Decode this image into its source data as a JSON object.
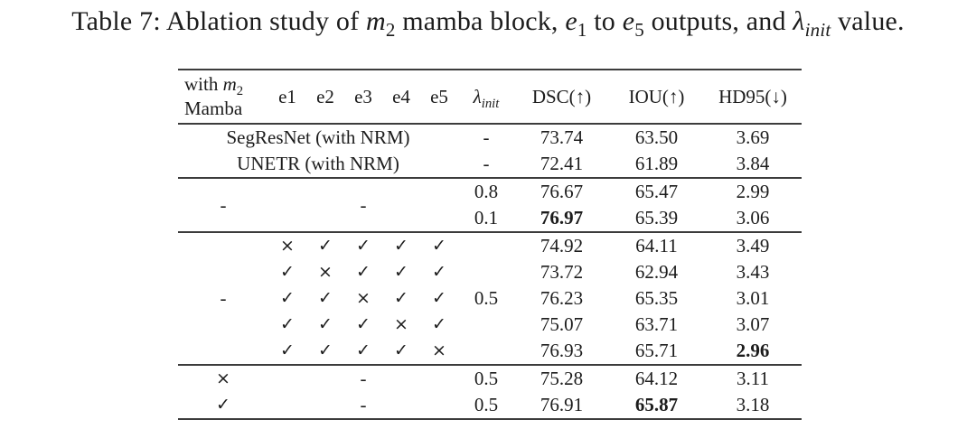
{
  "caption": {
    "segments": [
      {
        "t": "Table 7:  Ablation study of ",
        "s": "n"
      },
      {
        "t": "m",
        "s": "i"
      },
      {
        "t": "2",
        "s": "sub"
      },
      {
        "t": " mamba block, ",
        "s": "n"
      },
      {
        "t": "e",
        "s": "i"
      },
      {
        "t": "1",
        "s": "sub"
      },
      {
        "t": " to ",
        "s": "n"
      },
      {
        "t": "e",
        "s": "i"
      },
      {
        "t": "5",
        "s": "sub"
      },
      {
        "t": " outputs, and ",
        "s": "n"
      },
      {
        "t": "λ",
        "s": "i"
      },
      {
        "t": "init",
        "s": "subi"
      },
      {
        "t": " value.",
        "s": "n"
      }
    ]
  },
  "table": {
    "header": {
      "col1_line1": [
        {
          "t": "with ",
          "s": "n"
        },
        {
          "t": "m",
          "s": "i"
        },
        {
          "t": "2",
          "s": "sub"
        }
      ],
      "col1_line2": [
        {
          "t": "Mamba",
          "s": "n"
        }
      ],
      "e_cols": [
        "e1",
        "e2",
        "e3",
        "e4",
        "e5"
      ],
      "lambda_segments": [
        {
          "t": "λ",
          "s": "i"
        },
        {
          "t": "init",
          "s": "subi"
        }
      ],
      "metrics": [
        "DSC(↑)",
        "IOU(↑)",
        "HD95(↓)"
      ]
    },
    "symbols": {
      "check": "✓",
      "cross": "×",
      "dash": "-"
    },
    "sections": [
      {
        "rows": [
          {
            "cells": [
              {
                "t": "SegResNet (with NRM)",
                "cs": 6,
                "n": "model-name-cell"
              },
              {
                "t": "-",
                "n": "lambda-dash-cell"
              },
              {
                "t": "73.74",
                "n": "dsc-value-cell"
              },
              {
                "t": "63.50",
                "n": "iou-value-cell"
              },
              {
                "t": "3.69",
                "n": "hd95-value-cell"
              }
            ]
          },
          {
            "cells": [
              {
                "t": "UNETR (with NRM)",
                "cs": 6,
                "n": "model-name-cell"
              },
              {
                "t": "-",
                "n": "lambda-dash-cell"
              },
              {
                "t": "72.41",
                "n": "dsc-value-cell"
              },
              {
                "t": "61.89",
                "n": "iou-value-cell"
              },
              {
                "t": "3.84",
                "n": "hd95-value-cell"
              }
            ]
          }
        ]
      },
      {
        "rows": [
          {
            "cells": [
              {
                "t": "-",
                "rs": 2,
                "n": "mamba-dash-cell"
              },
              {
                "t": "-",
                "cs": 5,
                "rs": 2,
                "n": "e-outputs-dash-cell"
              },
              {
                "t": "0.8",
                "n": "lambda-value-cell"
              },
              {
                "t": "76.67",
                "n": "dsc-value-cell"
              },
              {
                "t": "65.47",
                "n": "iou-value-cell"
              },
              {
                "t": "2.99",
                "n": "hd95-value-cell"
              }
            ]
          },
          {
            "cells": [
              {
                "t": "0.1",
                "n": "lambda-value-cell"
              },
              {
                "t": "76.97",
                "b": true,
                "n": "dsc-value-cell"
              },
              {
                "t": "65.39",
                "n": "iou-value-cell"
              },
              {
                "t": "3.06",
                "n": "hd95-value-cell"
              }
            ]
          }
        ]
      },
      {
        "rows": [
          {
            "cells": [
              {
                "t": "-",
                "rs": 5,
                "n": "mamba-dash-cell"
              },
              {
                "t": "×",
                "n": "e1-cross-cell"
              },
              {
                "t": "✓",
                "n": "e2-check-cell"
              },
              {
                "t": "✓",
                "n": "e3-check-cell"
              },
              {
                "t": "✓",
                "n": "e4-check-cell"
              },
              {
                "t": "✓",
                "n": "e5-check-cell"
              },
              {
                "t": "0.5",
                "rs": 5,
                "n": "lambda-value-cell"
              },
              {
                "t": "74.92",
                "n": "dsc-value-cell"
              },
              {
                "t": "64.11",
                "n": "iou-value-cell"
              },
              {
                "t": "3.49",
                "n": "hd95-value-cell"
              }
            ]
          },
          {
            "cells": [
              {
                "t": "✓",
                "n": "e1-check-cell"
              },
              {
                "t": "×",
                "n": "e2-cross-cell"
              },
              {
                "t": "✓",
                "n": "e3-check-cell"
              },
              {
                "t": "✓",
                "n": "e4-check-cell"
              },
              {
                "t": "✓",
                "n": "e5-check-cell"
              },
              {
                "t": "73.72",
                "n": "dsc-value-cell"
              },
              {
                "t": "62.94",
                "n": "iou-value-cell"
              },
              {
                "t": "3.43",
                "n": "hd95-value-cell"
              }
            ]
          },
          {
            "cells": [
              {
                "t": "✓",
                "n": "e1-check-cell"
              },
              {
                "t": "✓",
                "n": "e2-check-cell"
              },
              {
                "t": "×",
                "n": "e3-cross-cell"
              },
              {
                "t": "✓",
                "n": "e4-check-cell"
              },
              {
                "t": "✓",
                "n": "e5-check-cell"
              },
              {
                "t": "76.23",
                "n": "dsc-value-cell"
              },
              {
                "t": "65.35",
                "n": "iou-value-cell"
              },
              {
                "t": "3.01",
                "n": "hd95-value-cell"
              }
            ]
          },
          {
            "cells": [
              {
                "t": "✓",
                "n": "e1-check-cell"
              },
              {
                "t": "✓",
                "n": "e2-check-cell"
              },
              {
                "t": "✓",
                "n": "e3-check-cell"
              },
              {
                "t": "×",
                "n": "e4-cross-cell"
              },
              {
                "t": "✓",
                "n": "e5-check-cell"
              },
              {
                "t": "75.07",
                "n": "dsc-value-cell"
              },
              {
                "t": "63.71",
                "n": "iou-value-cell"
              },
              {
                "t": "3.07",
                "n": "hd95-value-cell"
              }
            ]
          },
          {
            "cells": [
              {
                "t": "✓",
                "n": "e1-check-cell"
              },
              {
                "t": "✓",
                "n": "e2-check-cell"
              },
              {
                "t": "✓",
                "n": "e3-check-cell"
              },
              {
                "t": "✓",
                "n": "e4-check-cell"
              },
              {
                "t": "×",
                "n": "e5-cross-cell"
              },
              {
                "t": "76.93",
                "n": "dsc-value-cell"
              },
              {
                "t": "65.71",
                "n": "iou-value-cell"
              },
              {
                "t": "2.96",
                "b": true,
                "n": "hd95-value-cell"
              }
            ]
          }
        ]
      },
      {
        "rows": [
          {
            "cells": [
              {
                "t": "×",
                "n": "mamba-cross-cell"
              },
              {
                "t": "-",
                "cs": 5,
                "n": "e-outputs-dash-cell"
              },
              {
                "t": "0.5",
                "n": "lambda-value-cell"
              },
              {
                "t": "75.28",
                "n": "dsc-value-cell"
              },
              {
                "t": "64.12",
                "n": "iou-value-cell"
              },
              {
                "t": "3.11",
                "n": "hd95-value-cell"
              }
            ]
          },
          {
            "cells": [
              {
                "t": "✓",
                "n": "mamba-check-cell"
              },
              {
                "t": "-",
                "cs": 5,
                "n": "e-outputs-dash-cell"
              },
              {
                "t": "0.5",
                "n": "lambda-value-cell"
              },
              {
                "t": "76.91",
                "n": "dsc-value-cell"
              },
              {
                "t": "65.87",
                "b": true,
                "n": "iou-value-cell"
              },
              {
                "t": "3.18",
                "n": "hd95-value-cell"
              }
            ]
          }
        ]
      }
    ]
  },
  "colors": {
    "text": "#1c1c1c",
    "rule": "#3c3c3c",
    "background": "#ffffff"
  }
}
